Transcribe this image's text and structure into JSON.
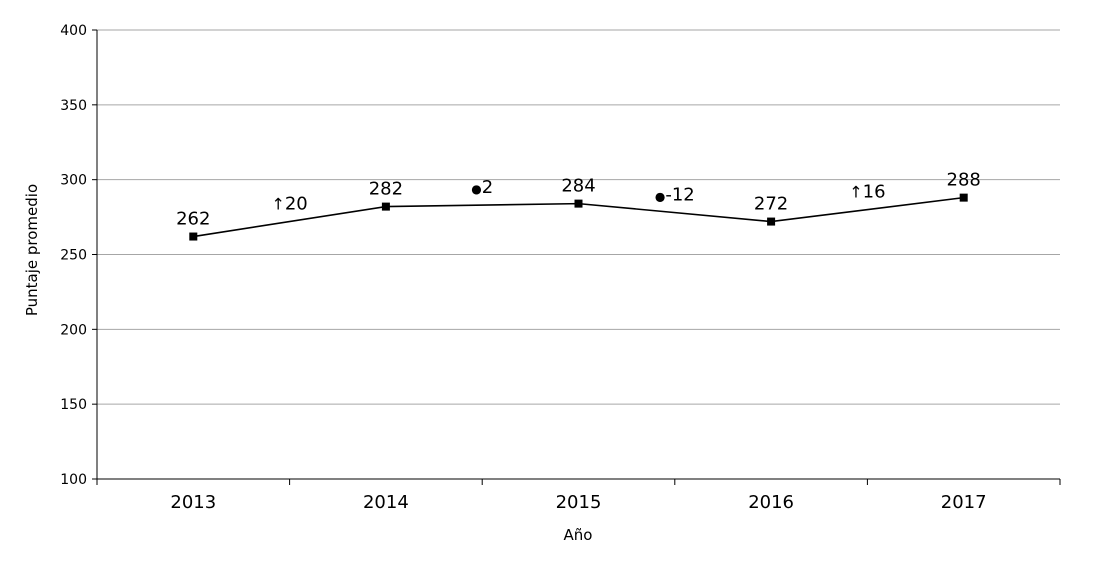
{
  "chart_data": {
    "type": "line",
    "title": "",
    "xlabel": "Año",
    "ylabel": "Puntaje promedio",
    "ylim": [
      100,
      400
    ],
    "yticks": [
      "100",
      "150",
      "200",
      "250",
      "300",
      "350",
      "400"
    ],
    "grid": true,
    "categories": [
      "2013",
      "2014",
      "2015",
      "2016",
      "2017"
    ],
    "series": [
      {
        "values": [
          262,
          282,
          284,
          272,
          288
        ],
        "labels": [
          "262",
          "282",
          "284",
          "272",
          "288"
        ]
      }
    ],
    "changes": [
      {
        "symbol": "↑",
        "text": "20"
      },
      {
        "symbol": "●",
        "text": "2"
      },
      {
        "symbol": "●",
        "text": "-12"
      },
      {
        "symbol": "↑",
        "text": "16"
      }
    ],
    "colors": {
      "line": "#000000",
      "grid": "#a6a6a6"
    }
  }
}
